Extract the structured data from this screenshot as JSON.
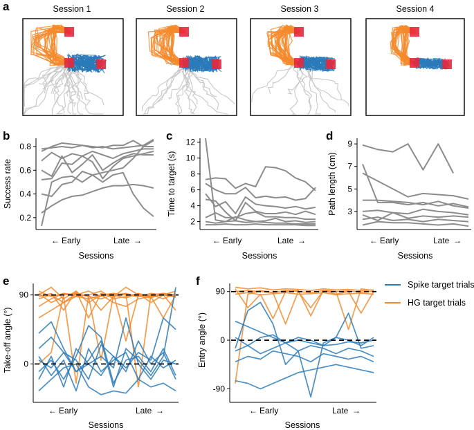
{
  "colors": {
    "gray": "#8c8c8c",
    "light_gray": "#c8c8c8",
    "spike": "#2a7ab8",
    "hg": "#f58a2c",
    "target": "#e8283c"
  },
  "panel_labels": {
    "a": "a",
    "b": "b",
    "c": "c",
    "d": "d",
    "e": "e",
    "f": "f"
  },
  "panel_a": {
    "sessions": [
      {
        "title": "Session 1"
      },
      {
        "title": "Session 2"
      },
      {
        "title": "Session 3"
      },
      {
        "title": "Session 4"
      }
    ]
  },
  "sessions_axis": {
    "early": "Early",
    "late": "Late",
    "label": "Sessions"
  },
  "legend": {
    "spike_label": "Spike target trials",
    "hg_label": "HG target trials"
  },
  "chart_data": [
    {
      "panel": "b",
      "type": "line",
      "ylabel": "Success rate",
      "xlabel": "Sessions",
      "ylim": [
        0.1,
        0.87
      ],
      "yticks": [
        "0.2",
        "0.4",
        "0.6",
        "0.8"
      ],
      "ytick_values": [
        0.2,
        0.4,
        0.6,
        0.8
      ],
      "x": [
        1,
        2,
        3,
        4,
        5,
        6,
        7,
        8,
        9,
        10,
        11,
        12
      ],
      "series": [
        {
          "name": "s1",
          "values": [
            0.78,
            0.79,
            0.8,
            0.79,
            0.81,
            0.8,
            0.79,
            0.81,
            0.81,
            0.85,
            0.8,
            0.8
          ]
        },
        {
          "name": "s2",
          "values": [
            0.76,
            0.8,
            0.83,
            0.82,
            0.81,
            0.79,
            0.8,
            0.78,
            0.79,
            0.8,
            0.81,
            0.86
          ]
        },
        {
          "name": "s3",
          "values": [
            0.68,
            0.75,
            0.7,
            0.74,
            0.72,
            0.76,
            0.73,
            0.7,
            0.74,
            0.76,
            0.78,
            0.78
          ]
        },
        {
          "name": "s4",
          "values": [
            0.6,
            0.55,
            0.72,
            0.58,
            0.65,
            0.73,
            0.6,
            0.66,
            0.71,
            0.74,
            0.73,
            0.73
          ]
        },
        {
          "name": "s5",
          "values": [
            0.52,
            0.53,
            0.66,
            0.65,
            0.72,
            0.67,
            0.53,
            0.63,
            0.7,
            0.72,
            0.74,
            0.76
          ]
        },
        {
          "name": "s6",
          "values": [
            0.4,
            0.38,
            0.48,
            0.5,
            0.59,
            0.56,
            0.5,
            0.56,
            0.58,
            0.4,
            0.28,
            0.21
          ]
        },
        {
          "name": "s7",
          "values": [
            0.24,
            0.3,
            0.35,
            0.38,
            0.39,
            0.42,
            0.45,
            0.47,
            0.47,
            0.48,
            0.47,
            0.45
          ]
        },
        {
          "name": "s8",
          "values": [
            0.13,
            0.5,
            0.54,
            0.55,
            0.5,
            0.56,
            0.58,
            0.6,
            0.62,
            0.7,
            0.8,
            0.85
          ]
        }
      ]
    },
    {
      "panel": "c",
      "type": "line",
      "ylabel": "Time to target (s)",
      "xlabel": "Sessions",
      "ylim": [
        1,
        12.5
      ],
      "yticks": [
        "2",
        "4",
        "6",
        "8",
        "10",
        "12"
      ],
      "ytick_values": [
        2,
        4,
        6,
        8,
        10,
        12
      ],
      "x": [
        1,
        2,
        3,
        4,
        5,
        6,
        7,
        8,
        9,
        10,
        11,
        12
      ],
      "series": [
        {
          "name": "s1",
          "values": [
            12.5,
            2.2,
            2.0,
            2.1,
            1.9,
            2.0,
            1.9,
            1.8,
            1.8,
            1.7,
            1.7,
            1.7
          ]
        },
        {
          "name": "s2",
          "values": [
            7.3,
            7.5,
            7.4,
            6.2,
            6.8,
            6.4,
            8.9,
            8.8,
            8.4,
            7.5,
            7.0,
            5.9
          ]
        },
        {
          "name": "s3",
          "values": [
            6.8,
            6.0,
            5.5,
            5.5,
            6.3,
            5.0,
            5.2,
            5.0,
            5.1,
            4.7,
            4.9,
            6.3
          ]
        },
        {
          "name": "s4",
          "values": [
            5.5,
            3.9,
            4.5,
            3.0,
            5.1,
            4.2,
            4.0,
            3.9,
            3.7,
            3.9,
            3.6,
            3.8
          ]
        },
        {
          "name": "s5",
          "values": [
            4.8,
            4.6,
            3.2,
            2.1,
            4.4,
            3.3,
            3.0,
            3.0,
            3.2,
            2.9,
            3.3,
            2.9
          ]
        },
        {
          "name": "s6",
          "values": [
            2.5,
            3.1,
            2.5,
            2.5,
            3.0,
            3.2,
            2.6,
            2.6,
            2.5,
            2.5,
            2.3,
            2.3
          ]
        },
        {
          "name": "s7",
          "values": [
            2.0,
            1.8,
            2.0,
            2.6,
            2.2,
            2.0,
            2.1,
            2.4,
            2.0,
            2.1,
            1.9,
            2.0
          ]
        },
        {
          "name": "s8",
          "values": [
            1.6,
            1.6,
            1.7,
            1.6,
            1.6,
            1.7,
            1.6,
            1.6,
            1.6,
            1.6,
            1.5,
            1.5
          ]
        }
      ]
    },
    {
      "panel": "d",
      "type": "line",
      "ylabel": "Path length (cm)",
      "xlabel": "Sessions",
      "ylim": [
        1.4,
        9.5
      ],
      "yticks": [
        "3",
        "5",
        "7",
        "9"
      ],
      "ytick_values": [
        3,
        5,
        7,
        9
      ],
      "x": [
        1,
        2,
        3,
        4,
        5,
        6,
        7,
        8
      ],
      "series": [
        {
          "name": "s1",
          "values": [
            8.9,
            8.5,
            8.3,
            9.0,
            6.7,
            9.0,
            6.4,
            null
          ]
        },
        {
          "name": "s2",
          "values": [
            7.2,
            3.8,
            3.8,
            3.6,
            3.8,
            3.5,
            3.7,
            3.4
          ]
        },
        {
          "name": "s3",
          "values": [
            6.4,
            5.7,
            5.0,
            4.3,
            4.6,
            4.5,
            4.4,
            4.1
          ]
        },
        {
          "name": "s4",
          "values": [
            4.0,
            4.0,
            3.9,
            3.8,
            3.6,
            3.9,
            3.5,
            3.3
          ]
        },
        {
          "name": "s5",
          "values": [
            3.0,
            3.1,
            2.9,
            2.8,
            3.2,
            3.0,
            2.9,
            2.7
          ]
        },
        {
          "name": "s6",
          "values": [
            2.7,
            2.2,
            2.9,
            2.4,
            2.6,
            2.5,
            2.6,
            2.5
          ]
        },
        {
          "name": "s7",
          "values": [
            2.3,
            2.5,
            2.2,
            2.3,
            2.1,
            2.3,
            2.2,
            2.1
          ]
        },
        {
          "name": "s8",
          "values": [
            1.8,
            2.1,
            2.0,
            2.0,
            1.9,
            1.8,
            1.9,
            1.7
          ]
        }
      ]
    },
    {
      "panel": "e",
      "type": "line",
      "ylabel": "Take-off angle (°)",
      "xlabel": "Sessions",
      "ylim": [
        -50,
        105
      ],
      "yticks": [
        "0",
        "90"
      ],
      "ytick_values": [
        0,
        90
      ],
      "reference_lines": [
        0,
        90
      ],
      "x": [
        1,
        2,
        3,
        4,
        5,
        6,
        7,
        8,
        9,
        10,
        11,
        12
      ],
      "series": [
        {
          "name": "hg1",
          "group": "HG target trials",
          "values": [
            95,
            88,
            92,
            90,
            95,
            88,
            92,
            90,
            88,
            92,
            90,
            95
          ]
        },
        {
          "name": "hg2",
          "group": "HG target trials",
          "values": [
            85,
            90,
            80,
            92,
            88,
            85,
            90,
            86,
            92,
            88,
            90,
            87
          ]
        },
        {
          "name": "hg3",
          "group": "HG target trials",
          "values": [
            90,
            100,
            85,
            95,
            60,
            92,
            88,
            100,
            90,
            86,
            92,
            90
          ]
        },
        {
          "name": "hg4",
          "group": "HG target trials",
          "values": [
            92,
            80,
            88,
            -25,
            90,
            95,
            85,
            88,
            92,
            80,
            90,
            88
          ]
        },
        {
          "name": "hg5",
          "group": "HG target trials",
          "values": [
            0,
            15,
            90,
            92,
            88,
            5,
            90,
            92,
            88,
            90,
            92,
            88
          ]
        },
        {
          "name": "hg6",
          "group": "HG target trials",
          "values": [
            88,
            92,
            70,
            95,
            80,
            90,
            92,
            30,
            90,
            88,
            60,
            90
          ]
        },
        {
          "name": "hg7",
          "group": "HG target trials",
          "values": [
            75,
            85,
            92,
            88,
            90,
            70,
            88,
            92,
            -30,
            90,
            85,
            92
          ]
        },
        {
          "name": "hg8",
          "group": "HG target trials",
          "values": [
            60,
            70,
            80,
            88,
            85,
            90,
            80,
            75,
            85,
            88,
            90,
            70
          ]
        },
        {
          "name": "sp1",
          "group": "Spike target trials",
          "values": [
            40,
            55,
            20,
            -10,
            5,
            30,
            -30,
            20,
            5,
            -15,
            10,
            100
          ]
        },
        {
          "name": "sp2",
          "group": "Spike target trials",
          "values": [
            -20,
            10,
            -30,
            20,
            0,
            -15,
            10,
            -5,
            15,
            5,
            60,
            45
          ]
        },
        {
          "name": "sp3",
          "group": "Spike target trials",
          "values": [
            10,
            -15,
            5,
            -35,
            20,
            -10,
            5,
            15,
            -20,
            10,
            -5,
            5
          ]
        },
        {
          "name": "sp4",
          "group": "Spike target trials",
          "values": [
            -10,
            5,
            -20,
            10,
            50,
            35,
            -25,
            5,
            10,
            -10,
            20,
            -15
          ]
        },
        {
          "name": "sp5",
          "group": "Spike target trials",
          "values": [
            5,
            -5,
            15,
            -10,
            0,
            10,
            -5,
            60,
            0,
            -20,
            5,
            0
          ]
        },
        {
          "name": "sp6",
          "group": "Spike target trials",
          "values": [
            -35,
            -20,
            -5,
            0,
            -30,
            -40,
            -35,
            -38,
            -20,
            -30,
            -25,
            -35
          ]
        },
        {
          "name": "sp7",
          "group": "Spike target trials",
          "values": [
            20,
            35,
            15,
            5,
            -20,
            25,
            10,
            -10,
            30,
            0,
            15,
            -20
          ]
        }
      ]
    },
    {
      "panel": "f",
      "type": "line",
      "ylabel": "Entry angle (°)",
      "xlabel": "Sessions",
      "ylim": [
        -115,
        105
      ],
      "yticks": [
        "-90",
        "0",
        "90"
      ],
      "ytick_values": [
        -90,
        0,
        90
      ],
      "reference_lines": [
        0,
        90
      ],
      "x": [
        1,
        2,
        3,
        4,
        5,
        6,
        7,
        8,
        9,
        10,
        11,
        12
      ],
      "series": [
        {
          "name": "hg1",
          "group": "HG target trials",
          "values": [
            98,
            95,
            97,
            93,
            95,
            94,
            92,
            95,
            93,
            94,
            92,
            93
          ]
        },
        {
          "name": "hg2",
          "group": "HG target trials",
          "values": [
            90,
            92,
            90,
            88,
            92,
            90,
            88,
            92,
            90,
            91,
            89,
            90
          ]
        },
        {
          "name": "hg3",
          "group": "HG target trials",
          "values": [
            85,
            88,
            84,
            86,
            88,
            85,
            86,
            88,
            84,
            86,
            87,
            85
          ]
        },
        {
          "name": "hg4",
          "group": "HG target trials",
          "values": [
            95,
            60,
            85,
            40,
            90,
            92,
            45,
            92,
            90,
            20,
            95,
            92
          ]
        },
        {
          "name": "hg5",
          "group": "HG target trials",
          "values": [
            -80,
            85,
            92,
            88,
            30,
            90,
            60,
            92,
            85,
            90,
            50,
            90
          ]
        },
        {
          "name": "sp1",
          "group": "Spike target trials",
          "values": [
            35,
            25,
            15,
            5,
            -5,
            0,
            -5,
            -10,
            -8,
            -3,
            -5,
            0
          ]
        },
        {
          "name": "sp2",
          "group": "Spike target trials",
          "values": [
            -15,
            55,
            70,
            30,
            -45,
            -20,
            -105,
            -5,
            5,
            50,
            -15,
            -10
          ]
        },
        {
          "name": "sp3",
          "group": "Spike target trials",
          "values": [
            5,
            -10,
            5,
            10,
            -5,
            5,
            0,
            -10,
            5,
            0,
            -10,
            5
          ]
        },
        {
          "name": "sp4",
          "group": "Spike target trials",
          "values": [
            -20,
            -10,
            -25,
            -15,
            -5,
            -20,
            -10,
            -15,
            -25,
            -15,
            -20,
            -30
          ]
        },
        {
          "name": "sp5",
          "group": "Spike target trials",
          "values": [
            -40,
            -30,
            -35,
            -20,
            -25,
            -30,
            -40,
            -25,
            -30,
            -35,
            -30,
            -40
          ]
        },
        {
          "name": "sp6",
          "group": "Spike target trials",
          "values": [
            -75,
            -80,
            -90,
            -80,
            -70,
            -60,
            -55,
            -50,
            -45,
            -50,
            -55,
            -60
          ]
        }
      ]
    }
  ]
}
